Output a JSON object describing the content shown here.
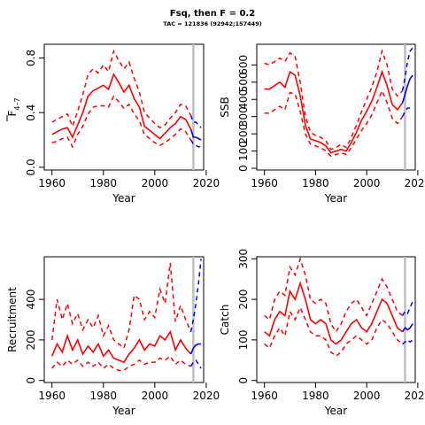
{
  "title": "Fsq, then F = 0.2",
  "subtitle": "TAC = 121836 (92942;157449)",
  "colors": {
    "history": "#ff0000",
    "projection": "#0000ff",
    "ref_line": "#bebebe",
    "axes": "#000000"
  },
  "chart_data": [
    {
      "type": "line",
      "ylabel": "F̄ 4–7",
      "ylabel_main": "F",
      "ylabel_sub": "4–7",
      "xlabel": "Year",
      "xlim": [
        1957,
        2019
      ],
      "ylim": [
        -0.02,
        0.9
      ],
      "xticks": [
        1960,
        1980,
        2000,
        2020
      ],
      "yticks": [
        0.0,
        0.4,
        0.8
      ],
      "yticklabels": [
        "0.0",
        "0.4",
        "0.8"
      ],
      "ref_year": 2015,
      "series": [
        {
          "role": "median",
          "x": [
            1960,
            1962,
            1964,
            1966,
            1968,
            1970,
            1972,
            1974,
            1976,
            1978,
            1980,
            1982,
            1984,
            1986,
            1988,
            1990,
            1992,
            1994,
            1996,
            1998,
            2000,
            2002,
            2004,
            2006,
            2008,
            2010,
            2012,
            2014
          ],
          "y": [
            0.24,
            0.26,
            0.28,
            0.29,
            0.22,
            0.31,
            0.4,
            0.52,
            0.56,
            0.58,
            0.6,
            0.57,
            0.68,
            0.62,
            0.55,
            0.6,
            0.5,
            0.44,
            0.3,
            0.27,
            0.24,
            0.21,
            0.25,
            0.29,
            0.32,
            0.37,
            0.35,
            0.28
          ]
        },
        {
          "role": "upper",
          "x": [
            1960,
            1962,
            1964,
            1966,
            1968,
            1970,
            1972,
            1974,
            1976,
            1978,
            1980,
            1982,
            1984,
            1986,
            1988,
            1990,
            1992,
            1994,
            1996,
            1998,
            2000,
            2002,
            2004,
            2006,
            2008,
            2010,
            2012,
            2014
          ],
          "y": [
            0.33,
            0.35,
            0.37,
            0.39,
            0.3,
            0.41,
            0.53,
            0.68,
            0.72,
            0.69,
            0.75,
            0.7,
            0.85,
            0.78,
            0.72,
            0.77,
            0.65,
            0.55,
            0.4,
            0.36,
            0.32,
            0.29,
            0.31,
            0.36,
            0.4,
            0.46,
            0.45,
            0.38
          ]
        },
        {
          "role": "lower",
          "x": [
            1960,
            1962,
            1964,
            1966,
            1968,
            1970,
            1972,
            1974,
            1976,
            1978,
            1980,
            1982,
            1984,
            1986,
            1988,
            1990,
            1992,
            1994,
            1996,
            1998,
            2000,
            2002,
            2004,
            2006,
            2008,
            2010,
            2012,
            2014
          ],
          "y": [
            0.18,
            0.19,
            0.21,
            0.22,
            0.15,
            0.24,
            0.3,
            0.39,
            0.44,
            0.45,
            0.45,
            0.44,
            0.52,
            0.48,
            0.43,
            0.46,
            0.39,
            0.34,
            0.24,
            0.21,
            0.18,
            0.16,
            0.18,
            0.21,
            0.24,
            0.28,
            0.26,
            0.2
          ]
        },
        {
          "role": "proj-median",
          "x": [
            2014,
            2015,
            2016,
            2017,
            2018
          ],
          "y": [
            0.28,
            0.22,
            0.22,
            0.21,
            0.2
          ]
        },
        {
          "role": "proj-upper",
          "x": [
            2014,
            2015,
            2016,
            2017,
            2018
          ],
          "y": [
            0.38,
            0.33,
            0.33,
            0.31,
            0.29
          ]
        },
        {
          "role": "proj-lower",
          "x": [
            2014,
            2015,
            2016,
            2017,
            2018
          ],
          "y": [
            0.2,
            0.17,
            0.16,
            0.15,
            0.15
          ]
        }
      ]
    },
    {
      "type": "line",
      "ylabel": "SSB",
      "xlabel": "Year",
      "xlim": [
        1957,
        2019
      ],
      "ylim": [
        -10,
        720
      ],
      "xticks": [
        1960,
        1980,
        2000,
        2020
      ],
      "yticks": [
        0,
        100,
        200,
        300,
        400,
        500,
        600
      ],
      "yticklabels": [
        "0",
        "100",
        "200",
        "300",
        "400",
        "500",
        "600"
      ],
      "ref_year": 2015,
      "series": [
        {
          "role": "median",
          "x": [
            1960,
            1962,
            1964,
            1966,
            1968,
            1970,
            1972,
            1974,
            1976,
            1978,
            1980,
            1982,
            1984,
            1986,
            1988,
            1990,
            1992,
            1994,
            1996,
            1998,
            2000,
            2002,
            2004,
            2006,
            2008,
            2010,
            2012,
            2014
          ],
          "y": [
            460,
            460,
            480,
            500,
            470,
            560,
            540,
            420,
            250,
            170,
            160,
            150,
            130,
            90,
            100,
            110,
            100,
            150,
            210,
            280,
            330,
            390,
            470,
            560,
            480,
            370,
            340,
            380
          ]
        },
        {
          "role": "upper",
          "x": [
            1960,
            1962,
            1964,
            1966,
            1968,
            1970,
            1972,
            1974,
            1976,
            1978,
            1980,
            1982,
            1984,
            1986,
            1988,
            1990,
            1992,
            1994,
            1996,
            1998,
            2000,
            2002,
            2004,
            2006,
            2008,
            2010,
            2012,
            2014
          ],
          "y": [
            610,
            600,
            620,
            640,
            620,
            670,
            650,
            500,
            300,
            210,
            190,
            180,
            160,
            110,
            120,
            140,
            120,
            180,
            250,
            330,
            400,
            470,
            560,
            680,
            600,
            460,
            420,
            450
          ]
        },
        {
          "role": "lower",
          "x": [
            1960,
            1962,
            1964,
            1966,
            1968,
            1970,
            1972,
            1974,
            1976,
            1978,
            1980,
            1982,
            1984,
            1986,
            1988,
            1990,
            1992,
            1994,
            1996,
            1998,
            2000,
            2002,
            2004,
            2006,
            2008,
            2010,
            2012,
            2014
          ],
          "y": [
            320,
            320,
            340,
            360,
            340,
            440,
            430,
            330,
            200,
            140,
            130,
            120,
            100,
            70,
            80,
            90,
            80,
            120,
            170,
            220,
            260,
            310,
            380,
            450,
            380,
            290,
            260,
            300
          ]
        },
        {
          "role": "proj-median",
          "x": [
            2014,
            2015,
            2016,
            2017,
            2018
          ],
          "y": [
            380,
            430,
            480,
            520,
            540
          ]
        },
        {
          "role": "proj-upper",
          "x": [
            2014,
            2015,
            2016,
            2017,
            2018
          ],
          "y": [
            450,
            530,
            620,
            680,
            700
          ]
        },
        {
          "role": "proj-lower",
          "x": [
            2014,
            2015,
            2016,
            2017,
            2018
          ],
          "y": [
            300,
            330,
            350,
            350,
            345
          ]
        }
      ]
    },
    {
      "type": "line",
      "ylabel": "Recruitment",
      "xlabel": "Year",
      "xlim": [
        1957,
        2019
      ],
      "ylim": [
        -10,
        610
      ],
      "xticks": [
        1960,
        1980,
        2000,
        2020
      ],
      "yticks": [
        0,
        200,
        400
      ],
      "yticklabels": [
        "0",
        "200",
        "400"
      ],
      "ref_year": 2015,
      "series": [
        {
          "role": "median",
          "x": [
            1960,
            1962,
            1964,
            1966,
            1968,
            1970,
            1972,
            1974,
            1976,
            1978,
            1980,
            1982,
            1984,
            1986,
            1988,
            1990,
            1992,
            1994,
            1996,
            1998,
            2000,
            2002,
            2004,
            2006,
            2008,
            2010,
            2012,
            2014
          ],
          "y": [
            120,
            180,
            140,
            220,
            150,
            200,
            130,
            170,
            140,
            180,
            120,
            150,
            110,
            100,
            90,
            130,
            160,
            200,
            150,
            180,
            170,
            220,
            200,
            240,
            150,
            200,
            160,
            130
          ]
        },
        {
          "role": "upper",
          "x": [
            1960,
            1962,
            1964,
            1966,
            1968,
            1970,
            1972,
            1974,
            1976,
            1978,
            1980,
            1982,
            1984,
            1986,
            1988,
            1990,
            1992,
            1994,
            1996,
            1998,
            2000,
            2002,
            2004,
            2006,
            2008,
            2010,
            2012,
            2014
          ],
          "y": [
            200,
            400,
            300,
            380,
            280,
            330,
            250,
            300,
            260,
            320,
            220,
            270,
            200,
            180,
            160,
            250,
            420,
            400,
            300,
            340,
            310,
            450,
            380,
            580,
            290,
            370,
            300,
            240
          ]
        },
        {
          "role": "lower",
          "x": [
            1960,
            1962,
            1964,
            1966,
            1968,
            1970,
            1972,
            1974,
            1976,
            1978,
            1980,
            1982,
            1984,
            1986,
            1988,
            1990,
            1992,
            1994,
            1996,
            1998,
            2000,
            2002,
            2004,
            2006,
            2008,
            2010,
            2012,
            2014
          ],
          "y": [
            60,
            90,
            70,
            100,
            80,
            100,
            70,
            90,
            70,
            90,
            60,
            80,
            60,
            50,
            50,
            70,
            80,
            100,
            80,
            90,
            90,
            110,
            100,
            120,
            80,
            100,
            80,
            70
          ]
        },
        {
          "role": "proj-median",
          "x": [
            2014,
            2015,
            2016,
            2017,
            2018
          ],
          "y": [
            130,
            160,
            175,
            180,
            180
          ]
        },
        {
          "role": "proj-upper",
          "x": [
            2014,
            2015,
            2016,
            2017,
            2018
          ],
          "y": [
            240,
            300,
            380,
            480,
            600
          ]
        },
        {
          "role": "proj-lower",
          "x": [
            2014,
            2015,
            2016,
            2017,
            2018
          ],
          "y": [
            70,
            90,
            100,
            80,
            60
          ]
        }
      ]
    },
    {
      "type": "line",
      "ylabel": "Catch",
      "xlabel": "Year",
      "xlim": [
        1957,
        2019
      ],
      "ylim": [
        -5,
        305
      ],
      "xticks": [
        1960,
        1980,
        2000,
        2020
      ],
      "yticks": [
        0,
        100,
        200,
        300
      ],
      "yticklabels": [
        "0",
        "100",
        "200",
        "300"
      ],
      "ref_year": 2015,
      "series": [
        {
          "role": "median",
          "x": [
            1960,
            1962,
            1964,
            1966,
            1968,
            1970,
            1972,
            1974,
            1976,
            1978,
            1980,
            1982,
            1984,
            1986,
            1988,
            1990,
            1992,
            1994,
            1996,
            1998,
            2000,
            2002,
            2004,
            2006,
            2008,
            2010,
            2012,
            2014
          ],
          "y": [
            120,
            110,
            150,
            170,
            160,
            220,
            200,
            240,
            200,
            150,
            140,
            150,
            140,
            100,
            90,
            100,
            120,
            140,
            150,
            130,
            120,
            140,
            170,
            200,
            190,
            160,
            130,
            120
          ]
        },
        {
          "role": "upper",
          "x": [
            1960,
            1962,
            1964,
            1966,
            1968,
            1970,
            1972,
            1974,
            1976,
            1978,
            1980,
            1982,
            1984,
            1986,
            1988,
            1990,
            1992,
            1994,
            1996,
            1998,
            2000,
            2002,
            2004,
            2006,
            2008,
            2010,
            2012,
            2014
          ],
          "y": [
            160,
            150,
            200,
            220,
            210,
            280,
            260,
            300,
            260,
            200,
            190,
            200,
            190,
            140,
            120,
            140,
            170,
            190,
            200,
            180,
            160,
            190,
            220,
            250,
            230,
            200,
            170,
            160
          ]
        },
        {
          "role": "lower",
          "x": [
            1960,
            1962,
            1964,
            1966,
            1968,
            1970,
            1972,
            1974,
            1976,
            1978,
            1980,
            1982,
            1984,
            1986,
            1988,
            1990,
            1992,
            1994,
            1996,
            1998,
            2000,
            2002,
            2004,
            2006,
            2008,
            2010,
            2012,
            2014
          ],
          "y": [
            90,
            80,
            110,
            130,
            110,
            170,
            150,
            180,
            150,
            120,
            110,
            110,
            100,
            70,
            60,
            70,
            90,
            100,
            110,
            100,
            90,
            100,
            130,
            150,
            140,
            120,
            100,
            90
          ]
        },
        {
          "role": "proj-median",
          "x": [
            2014,
            2015,
            2016,
            2017,
            2018
          ],
          "y": [
            120,
            130,
            125,
            130,
            140
          ]
        },
        {
          "role": "proj-upper",
          "x": [
            2014,
            2015,
            2016,
            2017,
            2018
          ],
          "y": [
            160,
            170,
            165,
            180,
            195
          ]
        },
        {
          "role": "proj-lower",
          "x": [
            2014,
            2015,
            2016,
            2017,
            2018
          ],
          "y": [
            90,
            95,
            100,
            95,
            100
          ]
        }
      ]
    }
  ]
}
